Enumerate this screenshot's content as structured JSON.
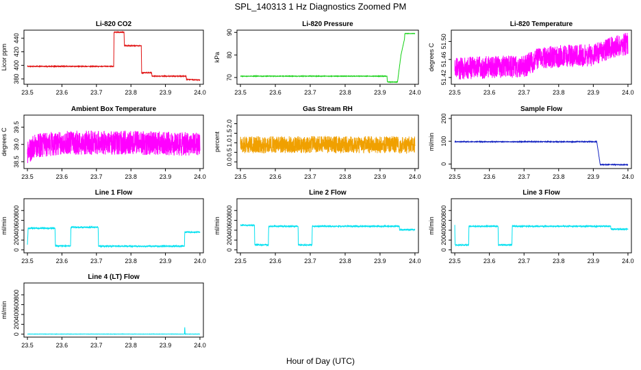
{
  "figure": {
    "title": "SPL_140313 1 Hz Diagnostics Zoomed PM",
    "xlabel": "Hour of Day (UTC)"
  },
  "chart_data": [
    {
      "id": "co2",
      "type": "line",
      "title": "Li-820 CO2",
      "ylabel": "Licor ppm",
      "color": "#e01010",
      "xlim": [
        23.49,
        24.01
      ],
      "xticks": [
        23.5,
        23.6,
        23.7,
        23.8,
        23.9,
        24.0
      ],
      "ylim": [
        372,
        452
      ],
      "yticks": [
        380,
        400,
        420,
        440
      ],
      "noise": 0.5,
      "x": [
        23.5,
        23.75,
        23.751,
        23.78,
        23.781,
        23.8,
        23.801,
        23.83,
        23.831,
        23.86,
        23.861,
        23.9,
        23.95,
        23.96,
        23.961,
        23.98,
        23.981,
        24.0
      ],
      "y": [
        398.5,
        398.5,
        449,
        449,
        429,
        429,
        429,
        429,
        389,
        389,
        384,
        384,
        384,
        384,
        379,
        379,
        378.5,
        378.5
      ]
    },
    {
      "id": "pressure",
      "type": "line",
      "title": "Li-820 Pressure",
      "ylabel": "kPa",
      "color": "#10d010",
      "xlim": [
        23.49,
        24.01
      ],
      "xticks": [
        23.5,
        23.6,
        23.7,
        23.8,
        23.9,
        24.0
      ],
      "ylim": [
        67,
        91
      ],
      "yticks": [
        70,
        80,
        90
      ],
      "noise": 0.1,
      "x": [
        23.5,
        23.92,
        23.921,
        23.95,
        23.96,
        23.97,
        23.971,
        24.0
      ],
      "y": [
        70.6,
        70.6,
        68,
        68,
        80,
        87,
        89.5,
        89.5
      ]
    },
    {
      "id": "li820temp",
      "type": "line",
      "title": "Li-820 Temperature",
      "ylabel": "degrees C",
      "color": "#ff00ff",
      "xlim": [
        23.49,
        24.01
      ],
      "xticks": [
        23.5,
        23.6,
        23.7,
        23.8,
        23.9,
        24.0
      ],
      "ylim": [
        51.405,
        51.525
      ],
      "yticks": [
        51.42,
        51.46,
        51.5
      ],
      "noise": 0.025,
      "x": [
        23.5,
        23.7,
        23.75,
        23.9,
        23.95,
        24.0
      ],
      "y": [
        51.44,
        51.445,
        51.465,
        51.47,
        51.485,
        51.495
      ]
    },
    {
      "id": "ambient",
      "type": "line",
      "title": "Ambient Box Temperature",
      "ylabel": "degrees C",
      "color": "#ff00ff",
      "xlim": [
        23.49,
        24.01
      ],
      "xticks": [
        23.5,
        23.6,
        23.7,
        23.8,
        23.9,
        24.0
      ],
      "ylim": [
        38.3,
        39.85
      ],
      "yticks": [
        38.5,
        39.0,
        39.5
      ],
      "noise": 0.35,
      "x": [
        23.5,
        23.52,
        23.6,
        23.8,
        24.0
      ],
      "y": [
        38.75,
        38.95,
        39.05,
        39.05,
        39.0
      ]
    },
    {
      "id": "rh",
      "type": "line",
      "title": "Gas Stream RH",
      "ylabel": "percent",
      "color": "#f0a000",
      "xlim": [
        23.49,
        24.01
      ],
      "xticks": [
        23.5,
        23.6,
        23.7,
        23.8,
        23.9,
        24.0
      ],
      "ylim": [
        -0.35,
        2.45
      ],
      "yticks": [
        0.0,
        0.5,
        1.0,
        1.5,
        2.0
      ],
      "noise": 0.45,
      "x": [
        23.5,
        24.0
      ],
      "y": [
        0.9,
        0.9
      ]
    },
    {
      "id": "sample",
      "type": "line",
      "title": "Sample Flow",
      "ylabel": "ml/min",
      "color": "#1020c0",
      "xlim": [
        23.49,
        24.01
      ],
      "xticks": [
        23.5,
        23.6,
        23.7,
        23.8,
        23.9,
        24.0
      ],
      "ylim": [
        -20,
        215
      ],
      "yticks": [
        0,
        100,
        200
      ],
      "noise": 1.5,
      "x": [
        23.5,
        23.91,
        23.92,
        23.921,
        24.0
      ],
      "y": [
        98,
        98,
        -3,
        -3,
        -3
      ]
    },
    {
      "id": "line1",
      "type": "line",
      "title": "Line 1 Flow",
      "ylabel": "ml/min",
      "color": "#00e0f0",
      "xlim": [
        23.49,
        24.01
      ],
      "xticks": [
        23.5,
        23.6,
        23.7,
        23.8,
        23.9,
        24.0
      ],
      "ylim": [
        -60,
        1040
      ],
      "yticks": [
        0,
        200,
        400,
        600,
        800
      ],
      "noise": 12,
      "x": [
        23.5,
        23.502,
        23.58,
        23.581,
        23.625,
        23.626,
        23.705,
        23.706,
        23.955,
        23.956,
        24.0
      ],
      "y": [
        100,
        440,
        440,
        80,
        80,
        460,
        460,
        75,
        75,
        360,
        360
      ]
    },
    {
      "id": "line2",
      "type": "line",
      "title": "Line 2 Flow",
      "ylabel": "ml/min",
      "color": "#00e0f0",
      "xlim": [
        23.49,
        24.01
      ],
      "xticks": [
        23.5,
        23.6,
        23.7,
        23.8,
        23.9,
        24.0
      ],
      "ylim": [
        -60,
        1040
      ],
      "yticks": [
        0,
        200,
        400,
        600,
        800
      ],
      "noise": 12,
      "x": [
        23.5,
        23.54,
        23.541,
        23.58,
        23.581,
        23.665,
        23.666,
        23.705,
        23.706,
        23.955,
        23.956,
        24.0
      ],
      "y": [
        500,
        500,
        100,
        100,
        480,
        480,
        100,
        100,
        480,
        480,
        410,
        410
      ]
    },
    {
      "id": "line3",
      "type": "line",
      "title": "Line 3 Flow",
      "ylabel": "ml/min",
      "color": "#00e0f0",
      "xlim": [
        23.49,
        24.01
      ],
      "xticks": [
        23.5,
        23.6,
        23.7,
        23.8,
        23.9,
        24.0
      ],
      "ylim": [
        -60,
        1040
      ],
      "yticks": [
        0,
        200,
        400,
        600,
        800
      ],
      "noise": 12,
      "x": [
        23.5,
        23.501,
        23.54,
        23.541,
        23.625,
        23.626,
        23.665,
        23.666,
        23.95,
        23.951,
        24.0
      ],
      "y": [
        500,
        100,
        100,
        480,
        480,
        100,
        100,
        480,
        480,
        420,
        420
      ]
    },
    {
      "id": "line4",
      "type": "line",
      "title": "Line 4 (LT) Flow",
      "ylabel": "ml/min",
      "color": "#00e0f0",
      "xlim": [
        23.49,
        24.01
      ],
      "xticks": [
        23.5,
        23.6,
        23.7,
        23.8,
        23.9,
        24.0
      ],
      "ylim": [
        -60,
        1040
      ],
      "yticks": [
        0,
        200,
        400,
        600,
        800
      ],
      "noise": 2,
      "x": [
        23.5,
        23.955,
        23.956,
        23.957,
        24.0
      ],
      "y": [
        2,
        2,
        150,
        2,
        2
      ]
    }
  ]
}
